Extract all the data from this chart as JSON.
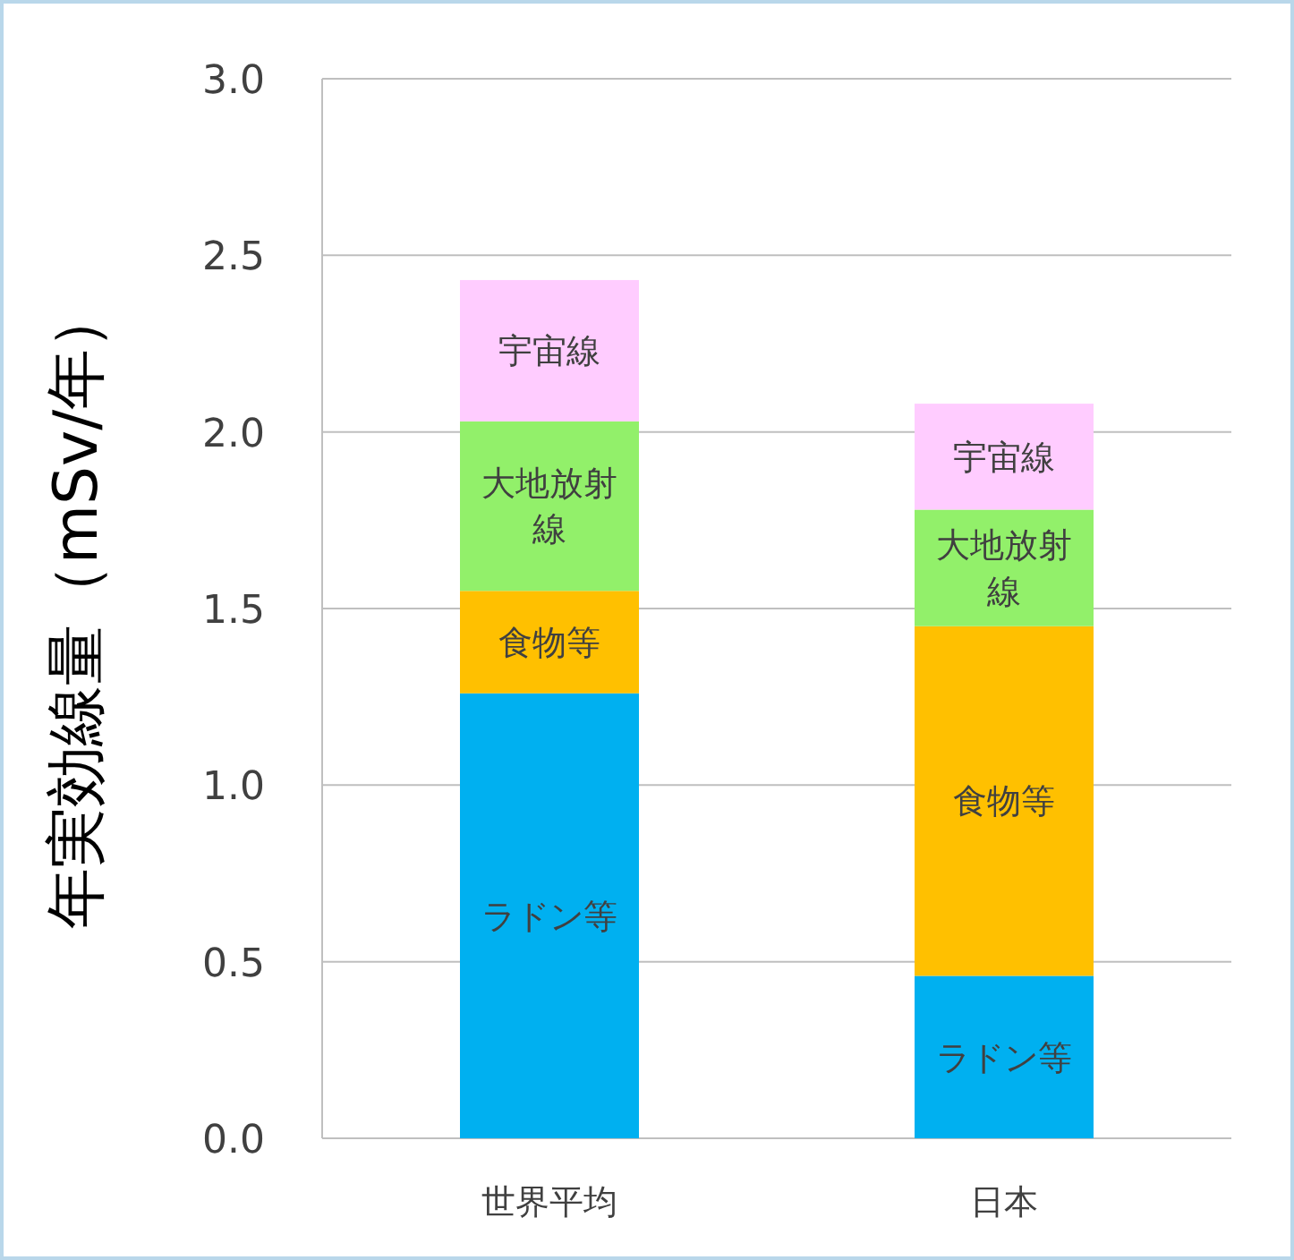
{
  "chart_data": {
    "type": "bar",
    "stacked": true,
    "ylabel": "年実効線量（mSv/年）",
    "categories": [
      "世界平均",
      "日本"
    ],
    "series": [
      {
        "name": "ラドン等",
        "color": "#00b0f0",
        "values": [
          1.26,
          0.46
        ]
      },
      {
        "name": "食物等",
        "color": "#ffc000",
        "values": [
          0.29,
          0.99
        ]
      },
      {
        "name": "大地放射線",
        "color": "#92f06a",
        "values": [
          0.48,
          0.33
        ]
      },
      {
        "name": "宇宙線",
        "color": "#ffccff",
        "values": [
          0.4,
          0.3
        ]
      }
    ],
    "ylim": [
      0,
      3
    ],
    "yticks": [
      {
        "value": 0,
        "label": "0.0"
      },
      {
        "value": 0.5,
        "label": "0.5"
      },
      {
        "value": 1,
        "label": "1.0"
      },
      {
        "value": 1.5,
        "label": "1.5"
      },
      {
        "value": 2,
        "label": "2.0"
      },
      {
        "value": 2.5,
        "label": "2.5"
      },
      {
        "value": 3,
        "label": "3.0"
      }
    ],
    "grid": "y"
  }
}
